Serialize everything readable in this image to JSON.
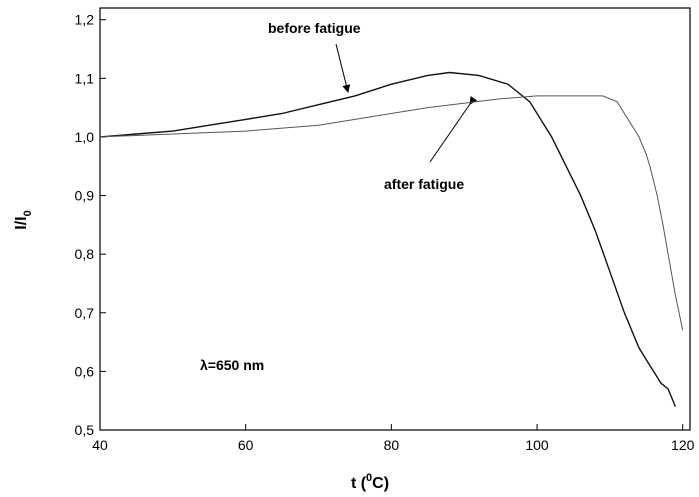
{
  "chart_data": {
    "type": "line",
    "xlabel": [
      "t (",
      "0",
      "C)"
    ],
    "ylabel": [
      "I/I",
      "0"
    ],
    "annotations": [
      "before fatigue",
      "after fatigue",
      "λ=650 nm"
    ],
    "xlim": [
      40,
      121
    ],
    "ylim": [
      0.5,
      1.22
    ],
    "xticks": [
      40,
      60,
      80,
      100,
      120
    ],
    "yticks": [
      {
        "value": 0.5,
        "label": "0,5"
      },
      {
        "value": 0.6,
        "label": "0,6"
      },
      {
        "value": 0.7,
        "label": "0,7"
      },
      {
        "value": 0.8,
        "label": "0,8"
      },
      {
        "value": 0.9,
        "label": "0,9"
      },
      {
        "value": 1.0,
        "label": "1,0"
      },
      {
        "value": 1.1,
        "label": "1,1"
      },
      {
        "value": 1.2,
        "label": "1,2"
      }
    ],
    "grid": false,
    "series": [
      {
        "name": "before fatigue",
        "color": "#111111",
        "x": [
          40,
          45,
          50,
          55,
          60,
          65,
          70,
          75,
          80,
          85,
          88,
          92,
          96,
          99,
          102,
          104,
          106,
          108,
          110,
          112,
          114,
          115,
          116,
          117,
          118,
          119
        ],
        "values": [
          1.0,
          1.005,
          1.01,
          1.02,
          1.03,
          1.04,
          1.055,
          1.07,
          1.09,
          1.105,
          1.11,
          1.105,
          1.09,
          1.06,
          1.0,
          0.95,
          0.9,
          0.84,
          0.77,
          0.7,
          0.64,
          0.62,
          0.6,
          0.58,
          0.57,
          0.54
        ]
      },
      {
        "name": "after fatigue",
        "color": "#555555",
        "x": [
          40,
          50,
          60,
          70,
          75,
          85,
          95,
          100,
          105,
          109,
          111,
          112,
          113,
          114,
          115,
          115.5,
          116.5,
          117.3,
          118,
          119,
          119.5,
          120
        ],
        "values": [
          1.0,
          1.005,
          1.01,
          1.02,
          1.03,
          1.05,
          1.065,
          1.07,
          1.07,
          1.07,
          1.06,
          1.04,
          1.02,
          1.0,
          0.97,
          0.95,
          0.9,
          0.85,
          0.8,
          0.73,
          0.7,
          0.67
        ]
      }
    ]
  }
}
